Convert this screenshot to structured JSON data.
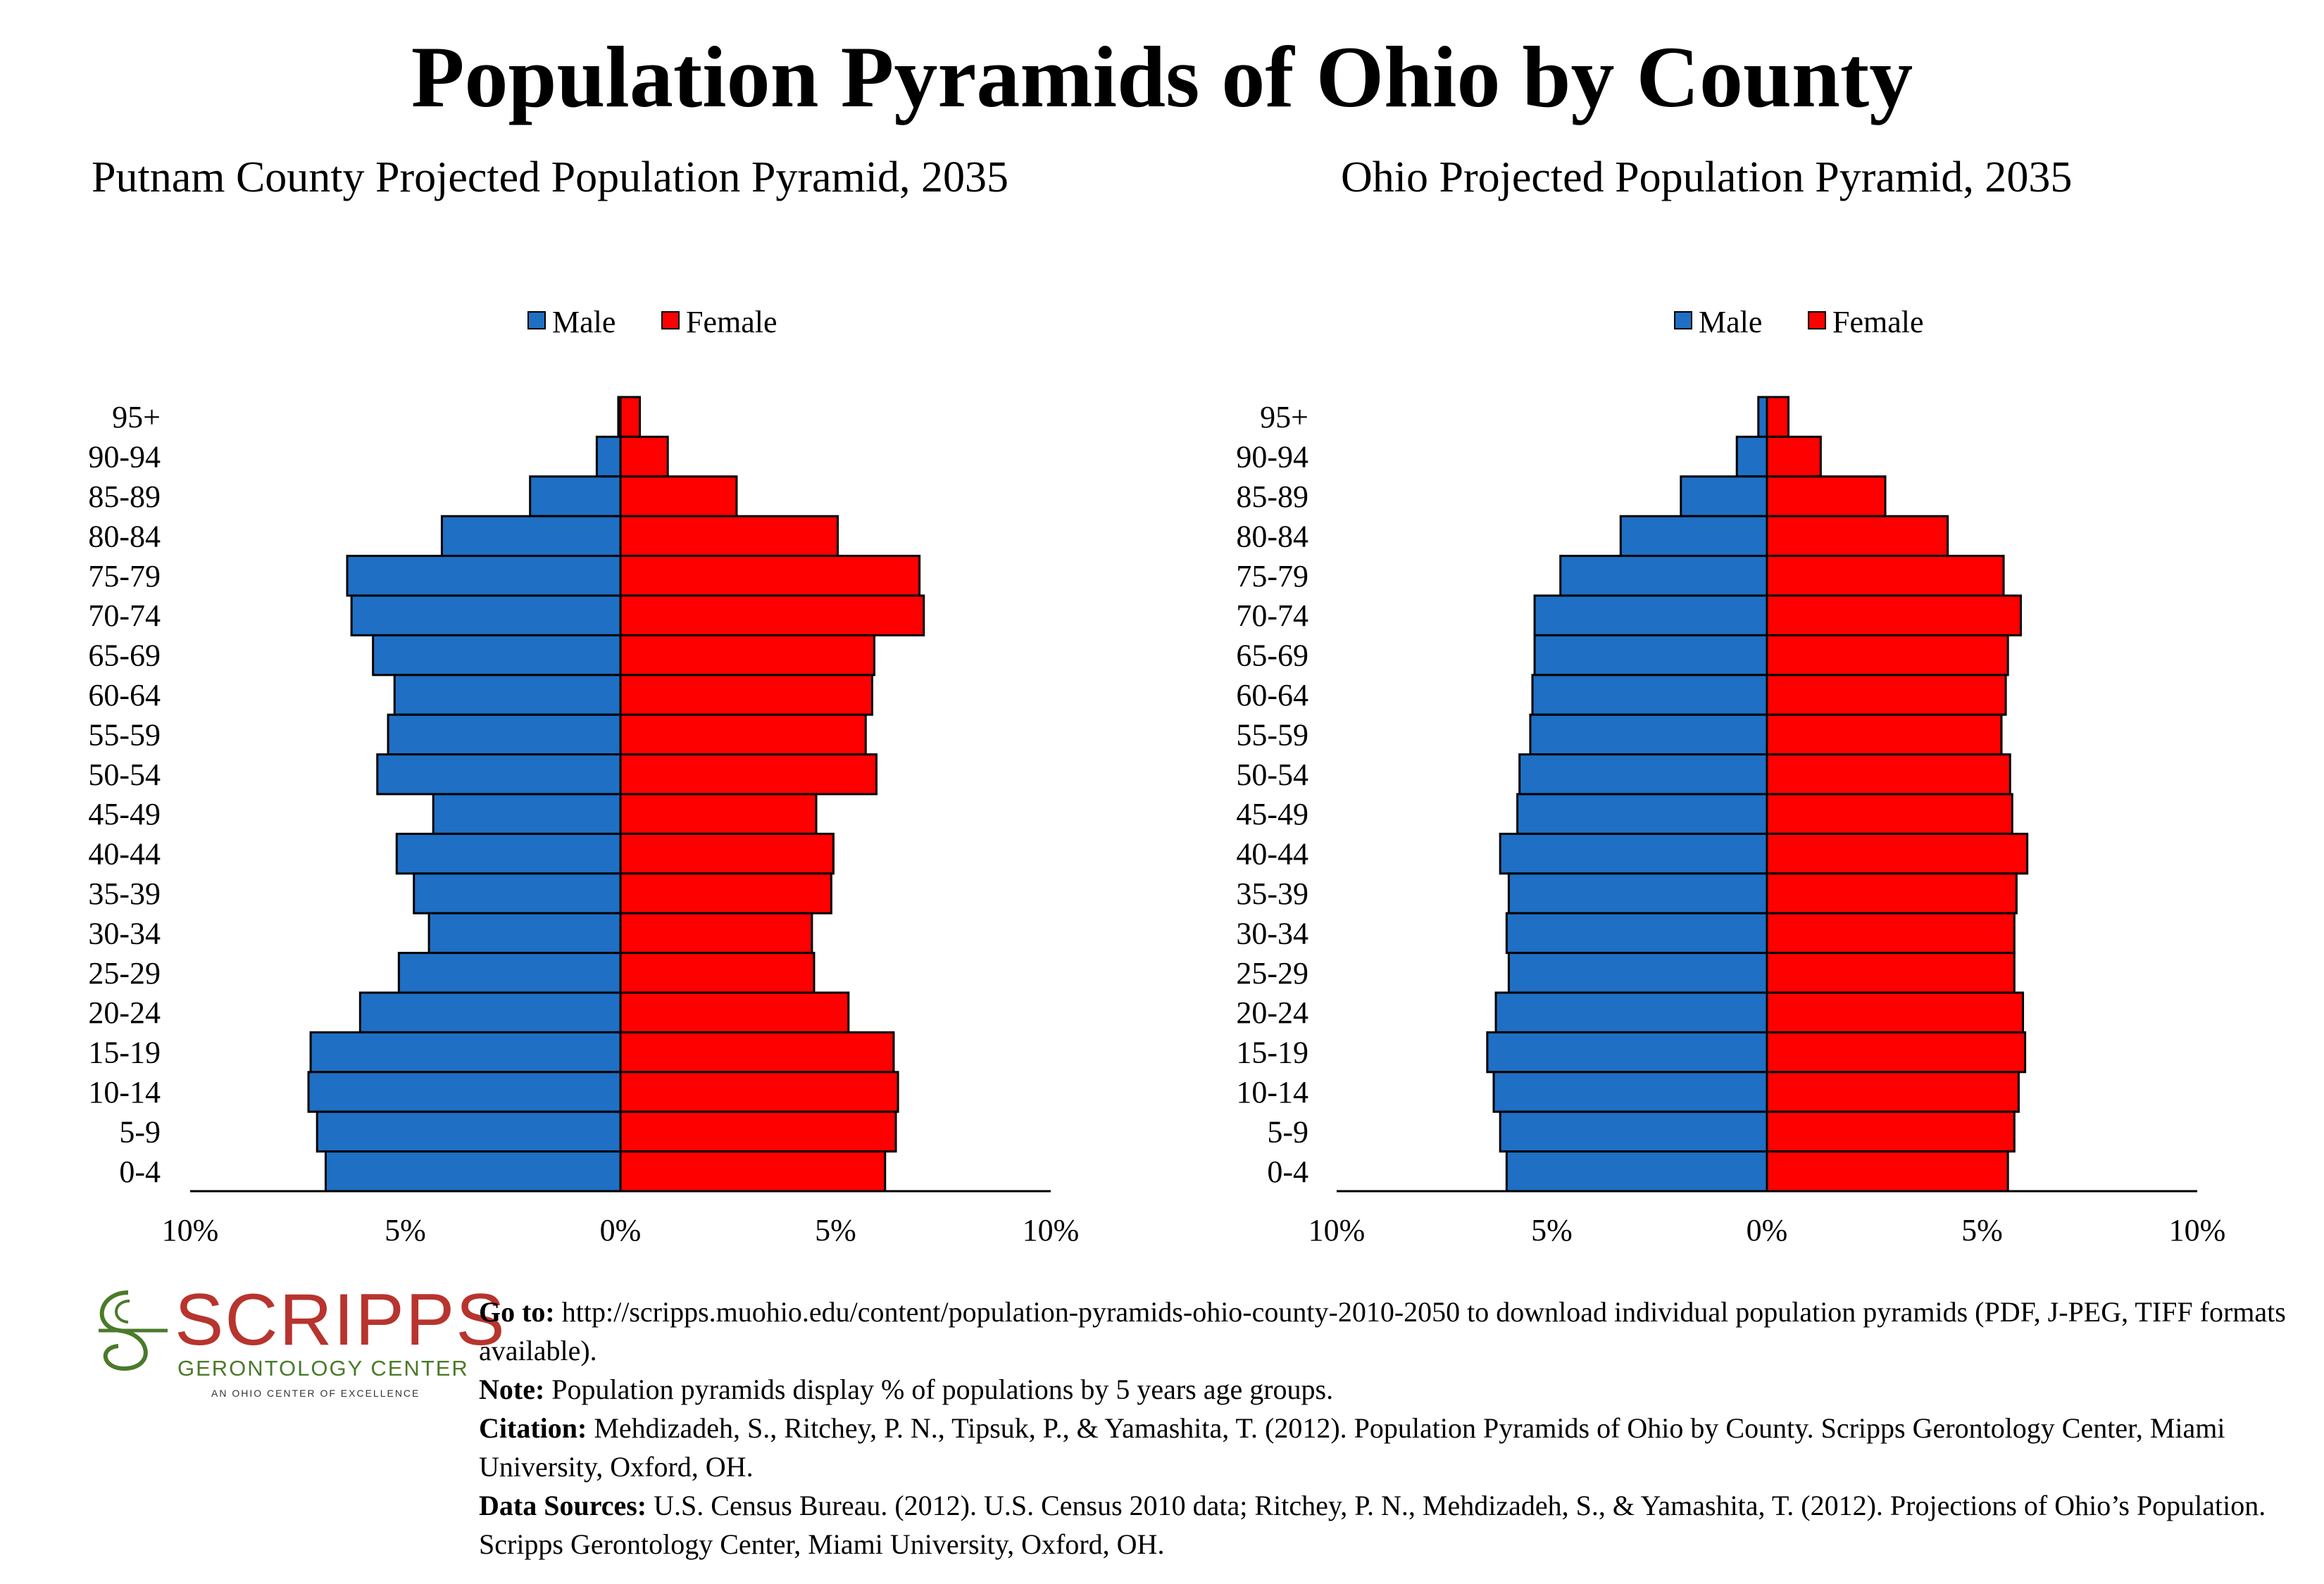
{
  "title": "Population Pyramids of Ohio by County",
  "charts": [
    {
      "title": "Putnam County Projected Population Pyramid, 2035",
      "legend": {
        "male": "Male",
        "female": "Female"
      }
    },
    {
      "title": "Ohio Projected Population Pyramid, 2035",
      "legend": {
        "male": "Male",
        "female": "Female"
      }
    }
  ],
  "colors": {
    "male": "#1f6fc4",
    "female": "#ff0000"
  },
  "chart_data": [
    {
      "type": "bar",
      "orientation": "horizontal-pyramid",
      "categories": [
        "95+",
        "90-94",
        "85-89",
        "80-84",
        "75-79",
        "70-74",
        "65-69",
        "60-64",
        "55-59",
        "50-54",
        "45-49",
        "40-44",
        "35-39",
        "30-34",
        "25-29",
        "20-24",
        "15-19",
        "10-14",
        "5-9",
        "0-4"
      ],
      "series": [
        {
          "name": "Male",
          "values": [
            0.05,
            0.55,
            2.1,
            4.15,
            6.35,
            6.25,
            5.75,
            5.25,
            5.4,
            5.65,
            4.35,
            5.2,
            4.8,
            4.45,
            5.15,
            6.05,
            7.2,
            7.25,
            7.05,
            6.85
          ]
        },
        {
          "name": "Female",
          "values": [
            0.45,
            1.1,
            2.7,
            5.05,
            6.95,
            7.05,
            5.9,
            5.85,
            5.7,
            5.95,
            4.55,
            4.95,
            4.9,
            4.45,
            4.5,
            5.3,
            6.35,
            6.45,
            6.4,
            6.15
          ]
        }
      ],
      "xlim": [
        -10,
        10
      ],
      "xticks": [
        "10%",
        "5%",
        "0%",
        "5%",
        "10%"
      ],
      "legend_position": "top-center"
    },
    {
      "type": "bar",
      "orientation": "horizontal-pyramid",
      "categories": [
        "95+",
        "90-94",
        "85-89",
        "80-84",
        "75-79",
        "70-74",
        "65-69",
        "60-64",
        "55-59",
        "50-54",
        "45-49",
        "40-44",
        "35-39",
        "30-34",
        "25-29",
        "20-24",
        "15-19",
        "10-14",
        "5-9",
        "0-4"
      ],
      "series": [
        {
          "name": "Male",
          "values": [
            0.2,
            0.7,
            2.0,
            3.4,
            4.8,
            5.4,
            5.4,
            5.45,
            5.5,
            5.75,
            5.8,
            6.2,
            6.0,
            6.05,
            6.0,
            6.3,
            6.5,
            6.35,
            6.2,
            6.05
          ]
        },
        {
          "name": "Female",
          "values": [
            0.5,
            1.25,
            2.75,
            4.2,
            5.5,
            5.9,
            5.6,
            5.55,
            5.45,
            5.65,
            5.7,
            6.05,
            5.8,
            5.75,
            5.75,
            5.95,
            6.0,
            5.85,
            5.75,
            5.6
          ]
        }
      ],
      "xlim": [
        -10,
        10
      ],
      "xticks": [
        "10%",
        "5%",
        "0%",
        "5%",
        "10%"
      ],
      "legend_position": "top-center"
    }
  ],
  "logo": {
    "name": "SCRIPPS",
    "subtitle": "GERONTOLOGY CENTER",
    "tagline": "AN OHIO CENTER OF EXCELLENCE"
  },
  "notes": {
    "goto_label": "Go to:",
    "goto_text": "http://scripps.muohio.edu/content/population-pyramids-ohio-county-2010-2050 to download individual population pyramids (PDF, J-PEG, TIFF formats available).",
    "note_label": "Note:",
    "note_text": "Population pyramids display % of populations by 5 years age groups.",
    "citation_label": "Citation:",
    "citation_text": "Mehdizadeh, S., Ritchey, P. N., Tipsuk, P., & Yamashita, T. (2012). Population Pyramids of Ohio by County. Scripps Gerontology Center, Miami University, Oxford, OH.",
    "sources_label": "Data Sources:",
    "sources_text": "U.S. Census Bureau. (2012). U.S. Census 2010 data; Ritchey, P. N., Mehdizadeh, S., & Yamashita, T. (2012). Projections of Ohio’s Population. Scripps Gerontology Center, Miami University, Oxford, OH."
  }
}
